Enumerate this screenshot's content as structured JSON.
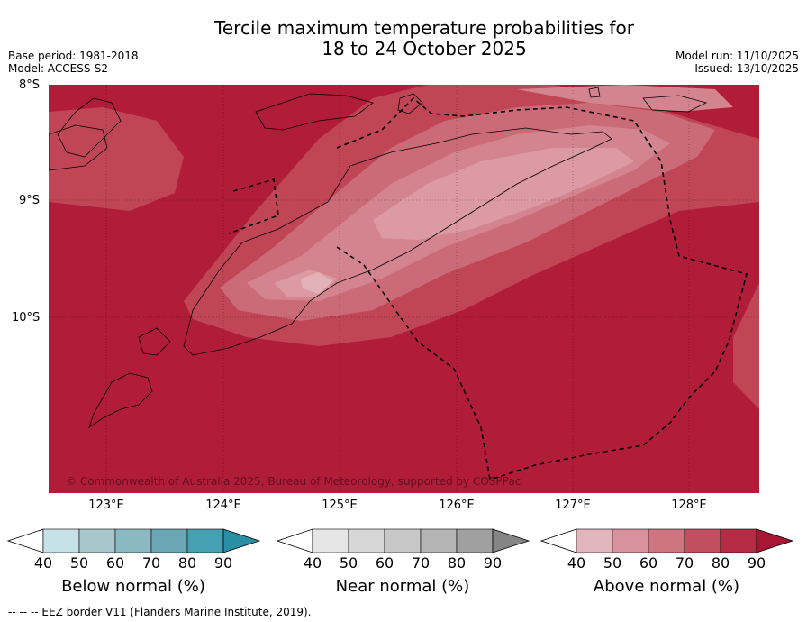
{
  "title": {
    "line1": "Tercile maximum temperature probabilities for",
    "line2": "18 to 24 October 2025"
  },
  "meta": {
    "base_period": "Base period: 1981-2018",
    "model": "Model: ACCESS-S2",
    "model_run": "Model run: 11/10/2025",
    "issued": "Issued: 13/10/2025"
  },
  "map": {
    "lat_labels": [
      "8°S",
      "9°S",
      "10°S"
    ],
    "lon_labels": [
      "123°E",
      "124°E",
      "125°E",
      "126°E",
      "127°E",
      "128°E"
    ],
    "copyright": "© Commonwealth of Australia 2025, Bureau of Meteorology, supported by COSPPac",
    "background_color": "#b11c38"
  },
  "colorbars": [
    {
      "name": "below",
      "title": "Below normal (%)",
      "ticks": [
        "40",
        "50",
        "60",
        "70",
        "80",
        "90"
      ],
      "colors": [
        "#ffffff",
        "#c6e1e7",
        "#a6c8cd",
        "#8ab9c2",
        "#6aa6b4",
        "#45a0b1",
        "#2a8fa5"
      ]
    },
    {
      "name": "near",
      "title": "Near normal (%)",
      "ticks": [
        "40",
        "50",
        "60",
        "70",
        "80",
        "90"
      ],
      "colors": [
        "#ffffff",
        "#e6e6e6",
        "#d7d7d7",
        "#c8c8c8",
        "#b5b5b5",
        "#a0a0a0",
        "#858585"
      ]
    },
    {
      "name": "above",
      "title": "Above normal (%)",
      "ticks": [
        "40",
        "50",
        "60",
        "70",
        "80",
        "90"
      ],
      "colors": [
        "#ffffff",
        "#e2b6bd",
        "#d8929d",
        "#cd7581",
        "#c24f5f",
        "#b52d45",
        "#a81535"
      ]
    }
  ],
  "footer": "--  --  -- EEZ border V11 (Flanders Marine Institute, 2019)."
}
